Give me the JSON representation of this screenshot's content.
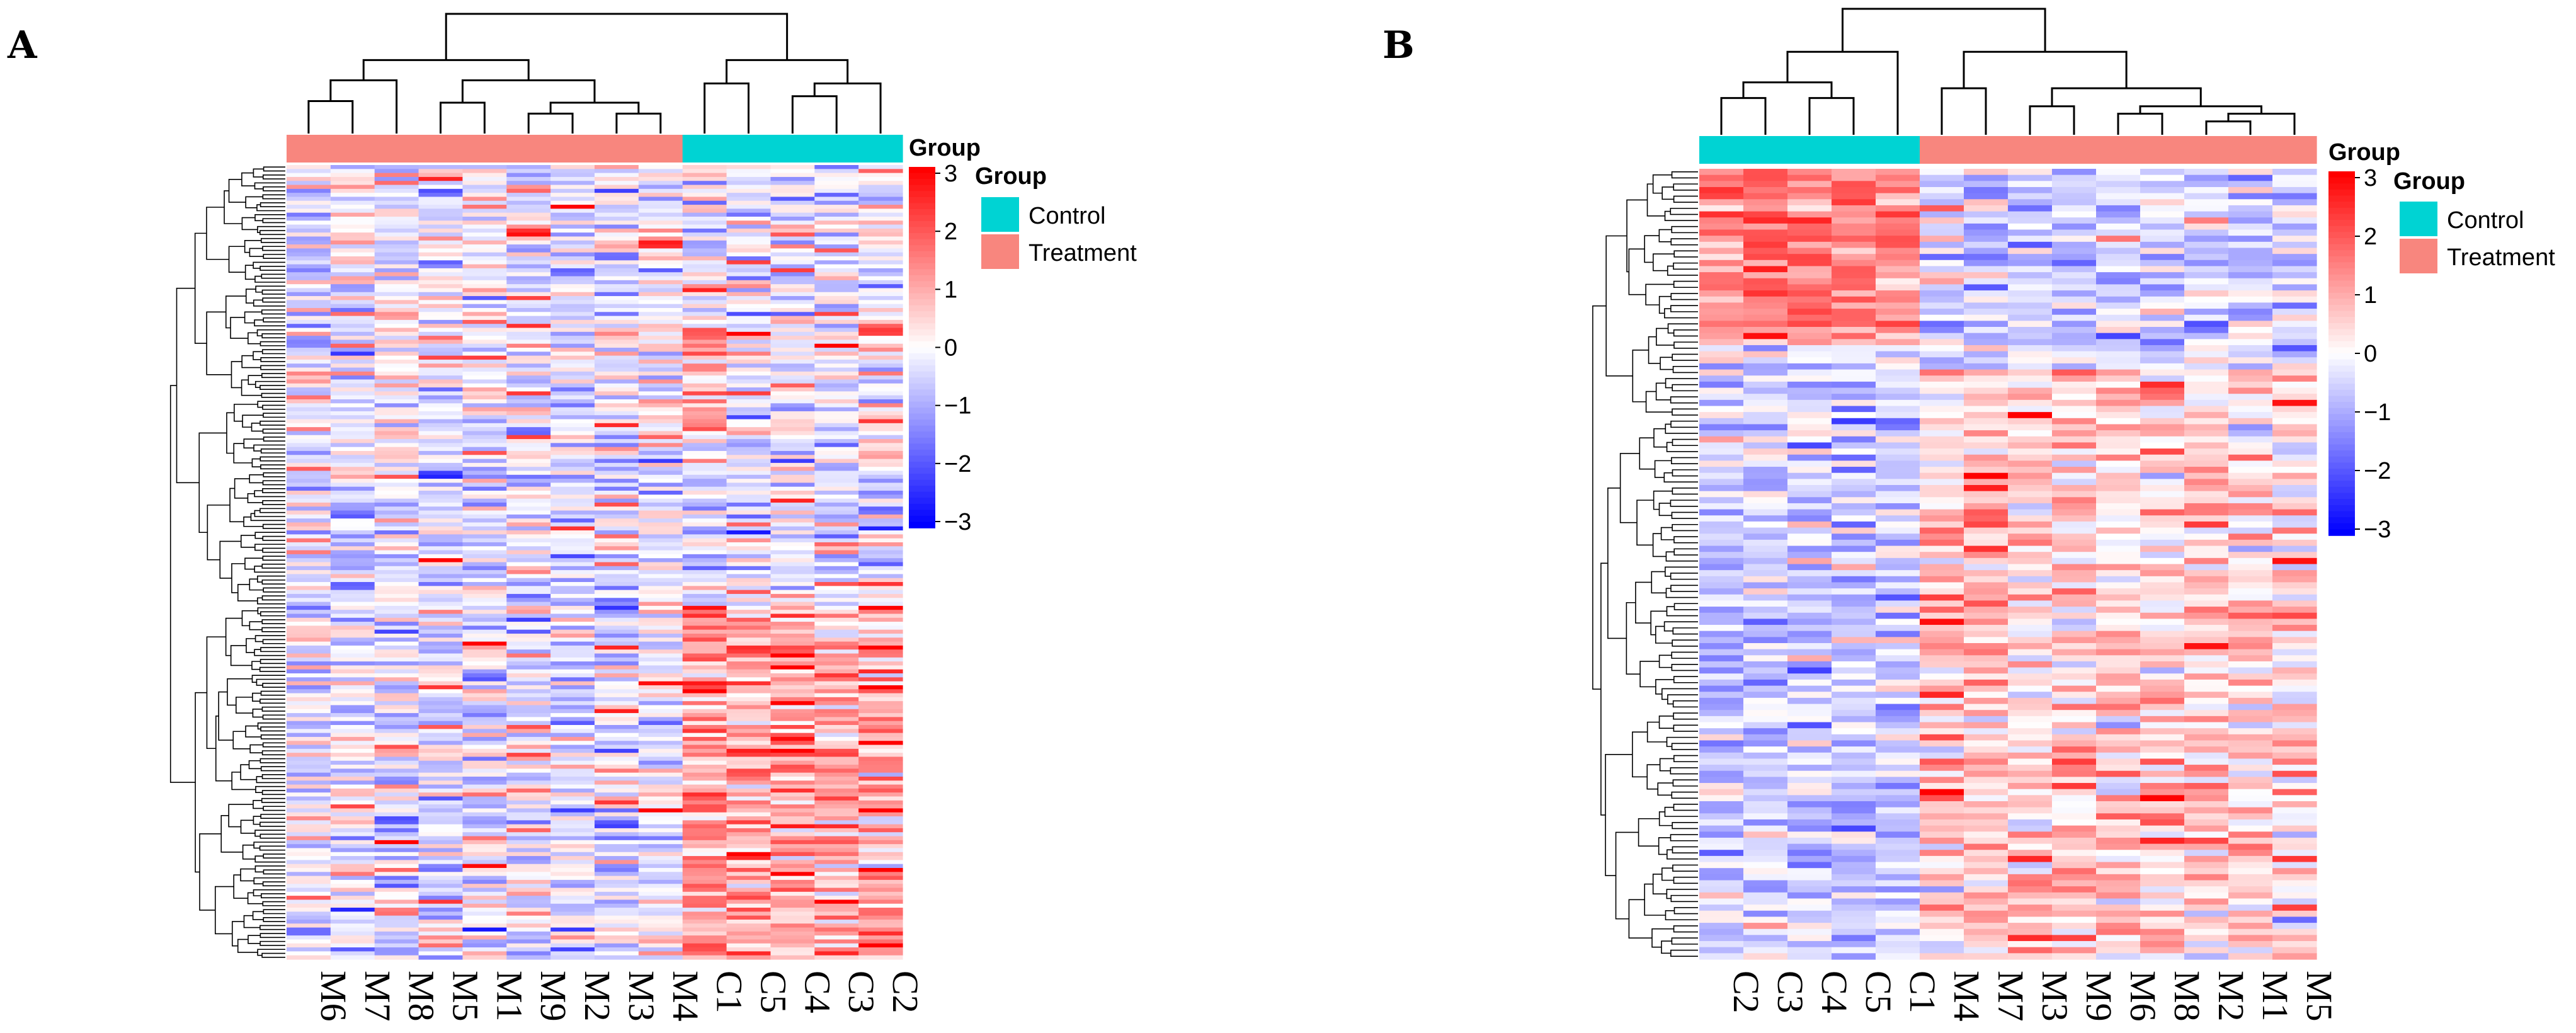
{
  "chart_data": [
    {
      "type": "heatmap",
      "panel_label": "A",
      "columns": [
        "M6",
        "M7",
        "M8",
        "M5",
        "M1",
        "M9",
        "M2",
        "M3",
        "M4",
        "C1",
        "C5",
        "C4",
        "C3",
        "C2"
      ],
      "column_groups": [
        "Treatment",
        "Treatment",
        "Treatment",
        "Treatment",
        "Treatment",
        "Treatment",
        "Treatment",
        "Treatment",
        "Treatment",
        "Control",
        "Control",
        "Control",
        "Control",
        "Control"
      ],
      "n_rows_approx": 200,
      "value_range": [
        -3,
        3
      ],
      "annotation_label": "Group",
      "pattern": "up-regulated in Control samples at bottom; scattered high values in Treatment",
      "row_dendrogram": true,
      "column_dendrogram": true
    },
    {
      "type": "heatmap",
      "panel_label": "B",
      "columns": [
        "C2",
        "C3",
        "C4",
        "C5",
        "C1",
        "M4",
        "M7",
        "M3",
        "M9",
        "M6",
        "M8",
        "M2",
        "M1",
        "M5"
      ],
      "column_groups": [
        "Control",
        "Control",
        "Control",
        "Control",
        "Control",
        "Treatment",
        "Treatment",
        "Treatment",
        "Treatment",
        "Treatment",
        "Treatment",
        "Treatment",
        "Treatment",
        "Treatment"
      ],
      "n_rows_approx": 130,
      "value_range": [
        -3,
        3
      ],
      "annotation_label": "Group",
      "pattern": "high in Control at top rows; high in Treatment in lower rows",
      "row_dendrogram": true,
      "column_dendrogram": true
    }
  ],
  "legend": {
    "title": "Group",
    "items": [
      {
        "label": "Control",
        "color": "#00D3D3"
      },
      {
        "label": "Treatment",
        "color": "#F8867E"
      }
    ]
  },
  "colorbar": {
    "ticks": [
      "3",
      "2",
      "1",
      "0",
      "−1",
      "−2",
      "−3"
    ],
    "high_color": "#FF0000",
    "mid_color": "#FFFFFF",
    "low_color": "#0000FF"
  }
}
